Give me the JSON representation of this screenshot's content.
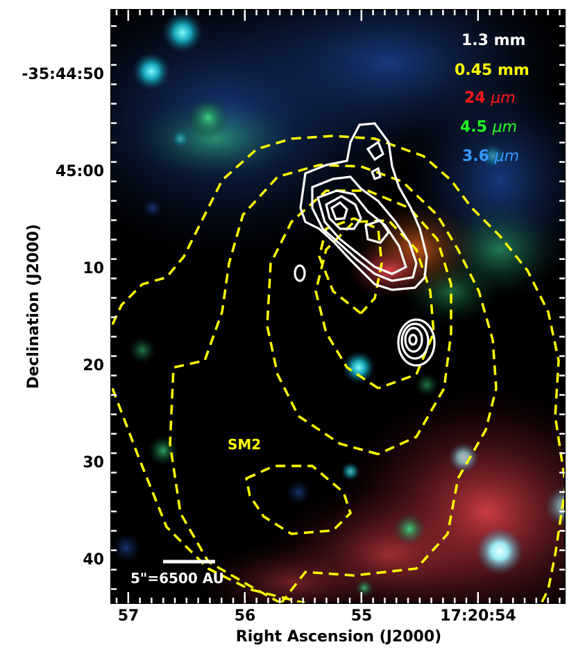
{
  "figure": {
    "xlabel": "Right Ascension (J2000)",
    "ylabel": "Declination (J2000)",
    "x_ticks": [
      "57",
      "56",
      "55",
      "17:20:54"
    ],
    "y_ticks": [
      "-35:44:50",
      "45:00",
      "10",
      "20",
      "30",
      "40"
    ],
    "legend": [
      {
        "prefix": "1.3 mm",
        "suffix": "",
        "color": "#ffffff"
      },
      {
        "prefix": "0.45 mm",
        "suffix": "",
        "color": "#ffff00"
      },
      {
        "prefix": "24 ",
        "suffix": "μm",
        "color": "#ff1a1a"
      },
      {
        "prefix": "4.5 ",
        "suffix": "μm",
        "color": "#22ff22"
      },
      {
        "prefix": "3.6 ",
        "suffix": "μm",
        "color": "#3399ff"
      }
    ],
    "source_label": "SM2",
    "scalebar_label": "5\"=6500 AU",
    "colors": {
      "background": "#000000",
      "contour_0_45mm": "#ffff00",
      "contour_1_3mm": "#ffffff",
      "frame": "#000000"
    }
  }
}
